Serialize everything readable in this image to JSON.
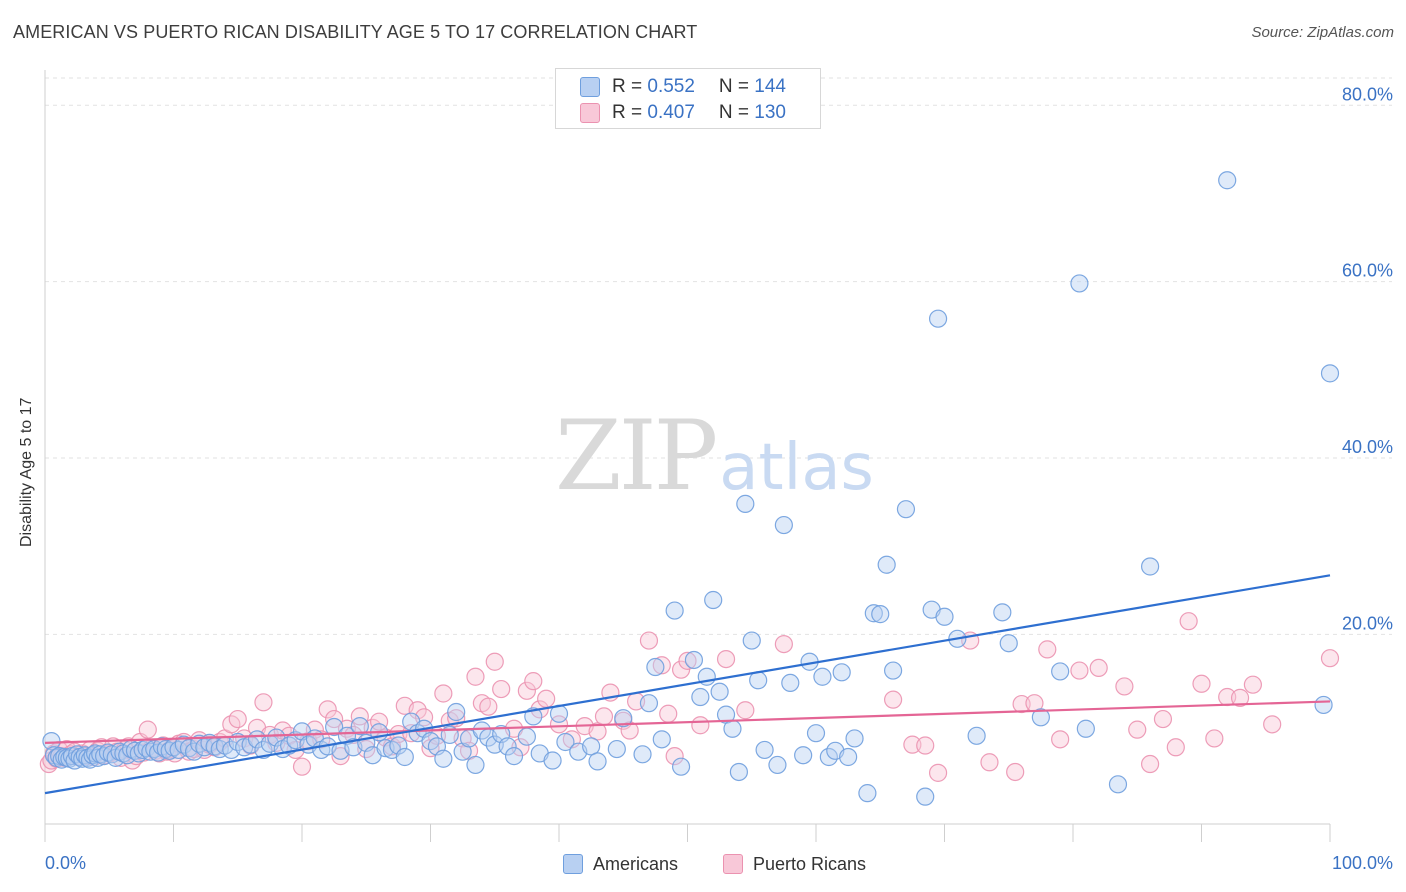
{
  "header": {
    "title": "AMERICAN VS PUERTO RICAN DISABILITY AGE 5 TO 17 CORRELATION CHART",
    "source": "Source: ZipAtlas.com"
  },
  "watermark": {
    "zip": "ZIP",
    "atlas": "atlas"
  },
  "legend": {
    "rows": [
      {
        "r_label": "R = ",
        "r_value": "0.552",
        "n_label": "N = ",
        "n_value": "144"
      },
      {
        "r_label": "R = ",
        "r_value": "0.407",
        "n_label": "N = ",
        "n_value": "130"
      }
    ]
  },
  "bottom_legend": {
    "americans": "Americans",
    "puerto_ricans": "Puerto Ricans"
  },
  "colors": {
    "americans_fill": "#b8d0f2",
    "americans_stroke": "#6f9fde",
    "americans_line": "#2e6fd0",
    "puerto_fill": "#f8c8d8",
    "puerto_stroke": "#eb92b0",
    "puerto_line": "#e46595",
    "axis_text": "#3a72c4",
    "grid": "#e2e2e2"
  },
  "chart_data": {
    "type": "scatter",
    "title": "AMERICAN VS PUERTO RICAN DISABILITY AGE 5 TO 17 CORRELATION CHART",
    "xlabel": "",
    "ylabel": "Disability Age 5 to 17",
    "xlim": [
      0,
      100
    ],
    "ylim": [
      -1.5,
      84
    ],
    "x_tick_labels": [
      "0.0%",
      "100.0%"
    ],
    "y_ticks": [
      20,
      40,
      60,
      80
    ],
    "y_tick_labels": [
      "20.0%",
      "40.0%",
      "60.0%",
      "80.0%"
    ],
    "grid": true,
    "legend_position": "top-center",
    "series": [
      {
        "name": "Americans",
        "trend": {
          "x": [
            0,
            100
          ],
          "y": [
            2.0,
            26.7
          ]
        },
        "points": [
          [
            0.5,
            7.9
          ],
          [
            0.7,
            6.3
          ],
          [
            0.9,
            6.0
          ],
          [
            1.1,
            6.2
          ],
          [
            1.3,
            5.8
          ],
          [
            1.5,
            6.1
          ],
          [
            1.7,
            6.0
          ],
          [
            1.9,
            5.9
          ],
          [
            2.1,
            6.2
          ],
          [
            2.3,
            5.7
          ],
          [
            2.5,
            6.4
          ],
          [
            2.7,
            6.1
          ],
          [
            2.9,
            5.9
          ],
          [
            3.1,
            6.3
          ],
          [
            3.3,
            6.0
          ],
          [
            3.5,
            5.8
          ],
          [
            3.7,
            6.3
          ],
          [
            3.9,
            6.5
          ],
          [
            4.1,
            6.0
          ],
          [
            4.3,
            6.4
          ],
          [
            4.6,
            6.2
          ],
          [
            4.9,
            6.6
          ],
          [
            5.2,
            6.4
          ],
          [
            5.5,
            6.0
          ],
          [
            5.8,
            6.7
          ],
          [
            6.1,
            6.5
          ],
          [
            6.4,
            6.3
          ],
          [
            6.7,
            7.0
          ],
          [
            7.0,
            6.8
          ],
          [
            7.3,
            6.5
          ],
          [
            7.6,
            6.9
          ],
          [
            7.9,
            7.1
          ],
          [
            8.2,
            6.7
          ],
          [
            8.5,
            7.0
          ],
          [
            8.8,
            6.6
          ],
          [
            9.1,
            7.3
          ],
          [
            9.4,
            7.0
          ],
          [
            9.7,
            6.8
          ],
          [
            10.0,
            7.2
          ],
          [
            10.4,
            6.9
          ],
          [
            10.8,
            7.5
          ],
          [
            11.2,
            7.1
          ],
          [
            11.6,
            6.7
          ],
          [
            12.0,
            7.6
          ],
          [
            12.4,
            7.2
          ],
          [
            12.8,
            7.7
          ],
          [
            13.2,
            7.3
          ],
          [
            13.6,
            7.0
          ],
          [
            14.0,
            7.4
          ],
          [
            14.5,
            6.9
          ],
          [
            15.0,
            7.8
          ],
          [
            15.5,
            7.2
          ],
          [
            16.0,
            7.5
          ],
          [
            16.5,
            8.1
          ],
          [
            17.0,
            6.9
          ],
          [
            17.5,
            7.6
          ],
          [
            18.0,
            8.3
          ],
          [
            18.5,
            7.0
          ],
          [
            19.0,
            7.4
          ],
          [
            19.5,
            8.0
          ],
          [
            20.0,
            9.0
          ],
          [
            20.5,
            7.5
          ],
          [
            21.0,
            8.2
          ],
          [
            21.5,
            6.9
          ],
          [
            22.0,
            7.3
          ],
          [
            22.5,
            9.5
          ],
          [
            23.0,
            6.8
          ],
          [
            23.5,
            8.5
          ],
          [
            24.0,
            7.2
          ],
          [
            24.5,
            9.6
          ],
          [
            25.0,
            7.7
          ],
          [
            25.5,
            6.3
          ],
          [
            26.0,
            8.9
          ],
          [
            26.5,
            7.1
          ],
          [
            27.0,
            6.9
          ],
          [
            27.5,
            7.4
          ],
          [
            28.0,
            6.1
          ],
          [
            28.5,
            10.1
          ],
          [
            29.0,
            8.8
          ],
          [
            29.5,
            9.3
          ],
          [
            30.0,
            7.9
          ],
          [
            30.5,
            7.3
          ],
          [
            31.0,
            5.9
          ],
          [
            31.5,
            8.6
          ],
          [
            32.0,
            11.2
          ],
          [
            32.5,
            6.7
          ],
          [
            33.0,
            8.2
          ],
          [
            33.5,
            5.2
          ],
          [
            34.0,
            9.1
          ],
          [
            34.5,
            8.3
          ],
          [
            35.0,
            7.5
          ],
          [
            35.5,
            8.7
          ],
          [
            36.0,
            7.3
          ],
          [
            36.5,
            6.2
          ],
          [
            37.5,
            8.4
          ],
          [
            38.0,
            10.7
          ],
          [
            38.5,
            6.5
          ],
          [
            39.5,
            5.7
          ],
          [
            40.0,
            11.0
          ],
          [
            40.5,
            7.8
          ],
          [
            41.5,
            6.7
          ],
          [
            42.5,
            7.3
          ],
          [
            43.0,
            5.6
          ],
          [
            44.5,
            7.0
          ],
          [
            45.0,
            10.5
          ],
          [
            46.5,
            6.4
          ],
          [
            47.0,
            12.2
          ],
          [
            47.5,
            16.3
          ],
          [
            48.0,
            8.1
          ],
          [
            49.0,
            22.7
          ],
          [
            49.5,
            5.0
          ],
          [
            50.5,
            17.1
          ],
          [
            51.0,
            12.9
          ],
          [
            51.5,
            15.2
          ],
          [
            52.0,
            23.9
          ],
          [
            52.5,
            13.5
          ],
          [
            53.0,
            10.9
          ],
          [
            53.5,
            9.3
          ],
          [
            54.0,
            4.4
          ],
          [
            55.0,
            19.3
          ],
          [
            54.5,
            34.8
          ],
          [
            55.5,
            14.8
          ],
          [
            56.0,
            6.9
          ],
          [
            57.0,
            5.2
          ],
          [
            57.5,
            32.4
          ],
          [
            58.0,
            14.5
          ],
          [
            59.0,
            6.3
          ],
          [
            59.5,
            16.9
          ],
          [
            60.0,
            8.8
          ],
          [
            60.5,
            15.2
          ],
          [
            61.0,
            6.1
          ],
          [
            61.5,
            6.8
          ],
          [
            62.0,
            15.7
          ],
          [
            62.5,
            6.1
          ],
          [
            63.0,
            8.2
          ],
          [
            64.0,
            2.0
          ],
          [
            64.5,
            22.4
          ],
          [
            65.0,
            22.3
          ],
          [
            65.5,
            27.9
          ],
          [
            66.0,
            15.9
          ],
          [
            67.0,
            34.2
          ],
          [
            68.5,
            1.6
          ],
          [
            69.0,
            22.8
          ],
          [
            69.5,
            55.8
          ],
          [
            70.0,
            22.0
          ],
          [
            71.0,
            19.5
          ],
          [
            72.5,
            8.5
          ],
          [
            74.5,
            22.5
          ],
          [
            75.0,
            19.0
          ],
          [
            77.5,
            10.6
          ],
          [
            79.0,
            15.8
          ],
          [
            80.5,
            59.8
          ],
          [
            81.0,
            9.3
          ],
          [
            83.5,
            3.0
          ],
          [
            86.0,
            27.7
          ],
          [
            92.0,
            71.5
          ],
          [
            99.5,
            12.0
          ],
          [
            100.0,
            49.6
          ]
        ]
      },
      {
        "name": "Puerto Ricans",
        "trend": {
          "x": [
            0,
            100
          ],
          "y": [
            7.7,
            12.4
          ]
        },
        "points": [
          [
            0.3,
            5.3
          ],
          [
            0.5,
            5.7
          ],
          [
            0.7,
            6.5
          ],
          [
            0.9,
            5.9
          ],
          [
            1.1,
            6.9
          ],
          [
            1.3,
            6.2
          ],
          [
            1.5,
            6.0
          ],
          [
            1.7,
            7.0
          ],
          [
            2.0,
            6.4
          ],
          [
            2.3,
            6.7
          ],
          [
            2.6,
            6.1
          ],
          [
            2.9,
            6.5
          ],
          [
            3.2,
            6.2
          ],
          [
            3.5,
            6.9
          ],
          [
            3.8,
            6.1
          ],
          [
            4.1,
            6.8
          ],
          [
            4.4,
            7.2
          ],
          [
            4.7,
            6.3
          ],
          [
            5.0,
            6.5
          ],
          [
            5.3,
            7.3
          ],
          [
            5.6,
            6.7
          ],
          [
            5.9,
            6.0
          ],
          [
            6.2,
            6.9
          ],
          [
            6.5,
            7.3
          ],
          [
            6.8,
            5.7
          ],
          [
            7.1,
            6.2
          ],
          [
            7.4,
            7.8
          ],
          [
            7.7,
            6.6
          ],
          [
            8.0,
            9.2
          ],
          [
            8.3,
            7.1
          ],
          [
            8.6,
            6.8
          ],
          [
            8.9,
            6.5
          ],
          [
            9.2,
            7.4
          ],
          [
            9.5,
            6.7
          ],
          [
            9.8,
            7.0
          ],
          [
            10.1,
            6.5
          ],
          [
            10.4,
            7.6
          ],
          [
            10.8,
            7.8
          ],
          [
            11.2,
            6.7
          ],
          [
            11.6,
            7.0
          ],
          [
            12.0,
            8.0
          ],
          [
            12.4,
            6.9
          ],
          [
            12.8,
            7.5
          ],
          [
            13.2,
            7.2
          ],
          [
            13.6,
            7.8
          ],
          [
            14.0,
            8.2
          ],
          [
            14.5,
            9.8
          ],
          [
            15.0,
            10.4
          ],
          [
            15.5,
            8.2
          ],
          [
            16.0,
            7.4
          ],
          [
            16.5,
            9.4
          ],
          [
            17.0,
            12.3
          ],
          [
            17.5,
            8.6
          ],
          [
            18.0,
            7.7
          ],
          [
            18.5,
            9.1
          ],
          [
            19.0,
            8.5
          ],
          [
            19.5,
            6.9
          ],
          [
            20.0,
            5.0
          ],
          [
            20.5,
            7.9
          ],
          [
            21.0,
            9.2
          ],
          [
            21.5,
            8.1
          ],
          [
            22.0,
            11.5
          ],
          [
            22.5,
            10.4
          ],
          [
            23.0,
            6.2
          ],
          [
            23.5,
            9.3
          ],
          [
            24.0,
            8.6
          ],
          [
            24.5,
            10.7
          ],
          [
            25.0,
            7.0
          ],
          [
            25.5,
            9.4
          ],
          [
            26.0,
            10.1
          ],
          [
            26.5,
            8.3
          ],
          [
            27.0,
            7.3
          ],
          [
            27.5,
            8.7
          ],
          [
            28.0,
            11.9
          ],
          [
            28.5,
            8.8
          ],
          [
            29.0,
            11.4
          ],
          [
            29.5,
            10.6
          ],
          [
            30.0,
            7.1
          ],
          [
            30.5,
            8.5
          ],
          [
            31.0,
            13.3
          ],
          [
            31.5,
            10.2
          ],
          [
            32.0,
            10.5
          ],
          [
            32.5,
            8.2
          ],
          [
            33.0,
            6.8
          ],
          [
            33.5,
            15.2
          ],
          [
            34.0,
            12.2
          ],
          [
            34.5,
            11.8
          ],
          [
            35.0,
            16.9
          ],
          [
            35.5,
            13.8
          ],
          [
            36.5,
            9.3
          ],
          [
            37.0,
            7.2
          ],
          [
            37.5,
            13.6
          ],
          [
            38.0,
            14.7
          ],
          [
            38.5,
            11.5
          ],
          [
            39.0,
            12.7
          ],
          [
            40.0,
            9.8
          ],
          [
            41.0,
            8.1
          ],
          [
            42.0,
            9.6
          ],
          [
            43.0,
            9.0
          ],
          [
            43.5,
            10.7
          ],
          [
            44.0,
            13.4
          ],
          [
            45.0,
            10.2
          ],
          [
            45.5,
            9.1
          ],
          [
            46.0,
            12.4
          ],
          [
            47.0,
            19.3
          ],
          [
            48.0,
            16.5
          ],
          [
            48.5,
            11.0
          ],
          [
            49.0,
            6.2
          ],
          [
            49.5,
            16.0
          ],
          [
            50.0,
            17.0
          ],
          [
            51.0,
            9.7
          ],
          [
            53.0,
            17.2
          ],
          [
            54.5,
            11.4
          ],
          [
            57.5,
            18.9
          ],
          [
            66.0,
            12.6
          ],
          [
            67.5,
            7.5
          ],
          [
            68.5,
            7.4
          ],
          [
            69.5,
            4.3
          ],
          [
            72.0,
            19.3
          ],
          [
            73.5,
            5.5
          ],
          [
            75.5,
            4.4
          ],
          [
            76.0,
            12.1
          ],
          [
            77.0,
            12.2
          ],
          [
            78.0,
            18.3
          ],
          [
            79.0,
            8.1
          ],
          [
            80.5,
            15.9
          ],
          [
            82.0,
            16.2
          ],
          [
            84.0,
            14.1
          ],
          [
            85.0,
            9.2
          ],
          [
            86.0,
            5.3
          ],
          [
            87.0,
            10.4
          ],
          [
            88.0,
            7.2
          ],
          [
            89.0,
            21.5
          ],
          [
            90.0,
            14.4
          ],
          [
            91.0,
            8.2
          ],
          [
            92.0,
            12.9
          ],
          [
            93.0,
            12.8
          ],
          [
            94.0,
            14.3
          ],
          [
            95.5,
            9.8
          ],
          [
            100.0,
            17.3
          ]
        ]
      }
    ]
  }
}
